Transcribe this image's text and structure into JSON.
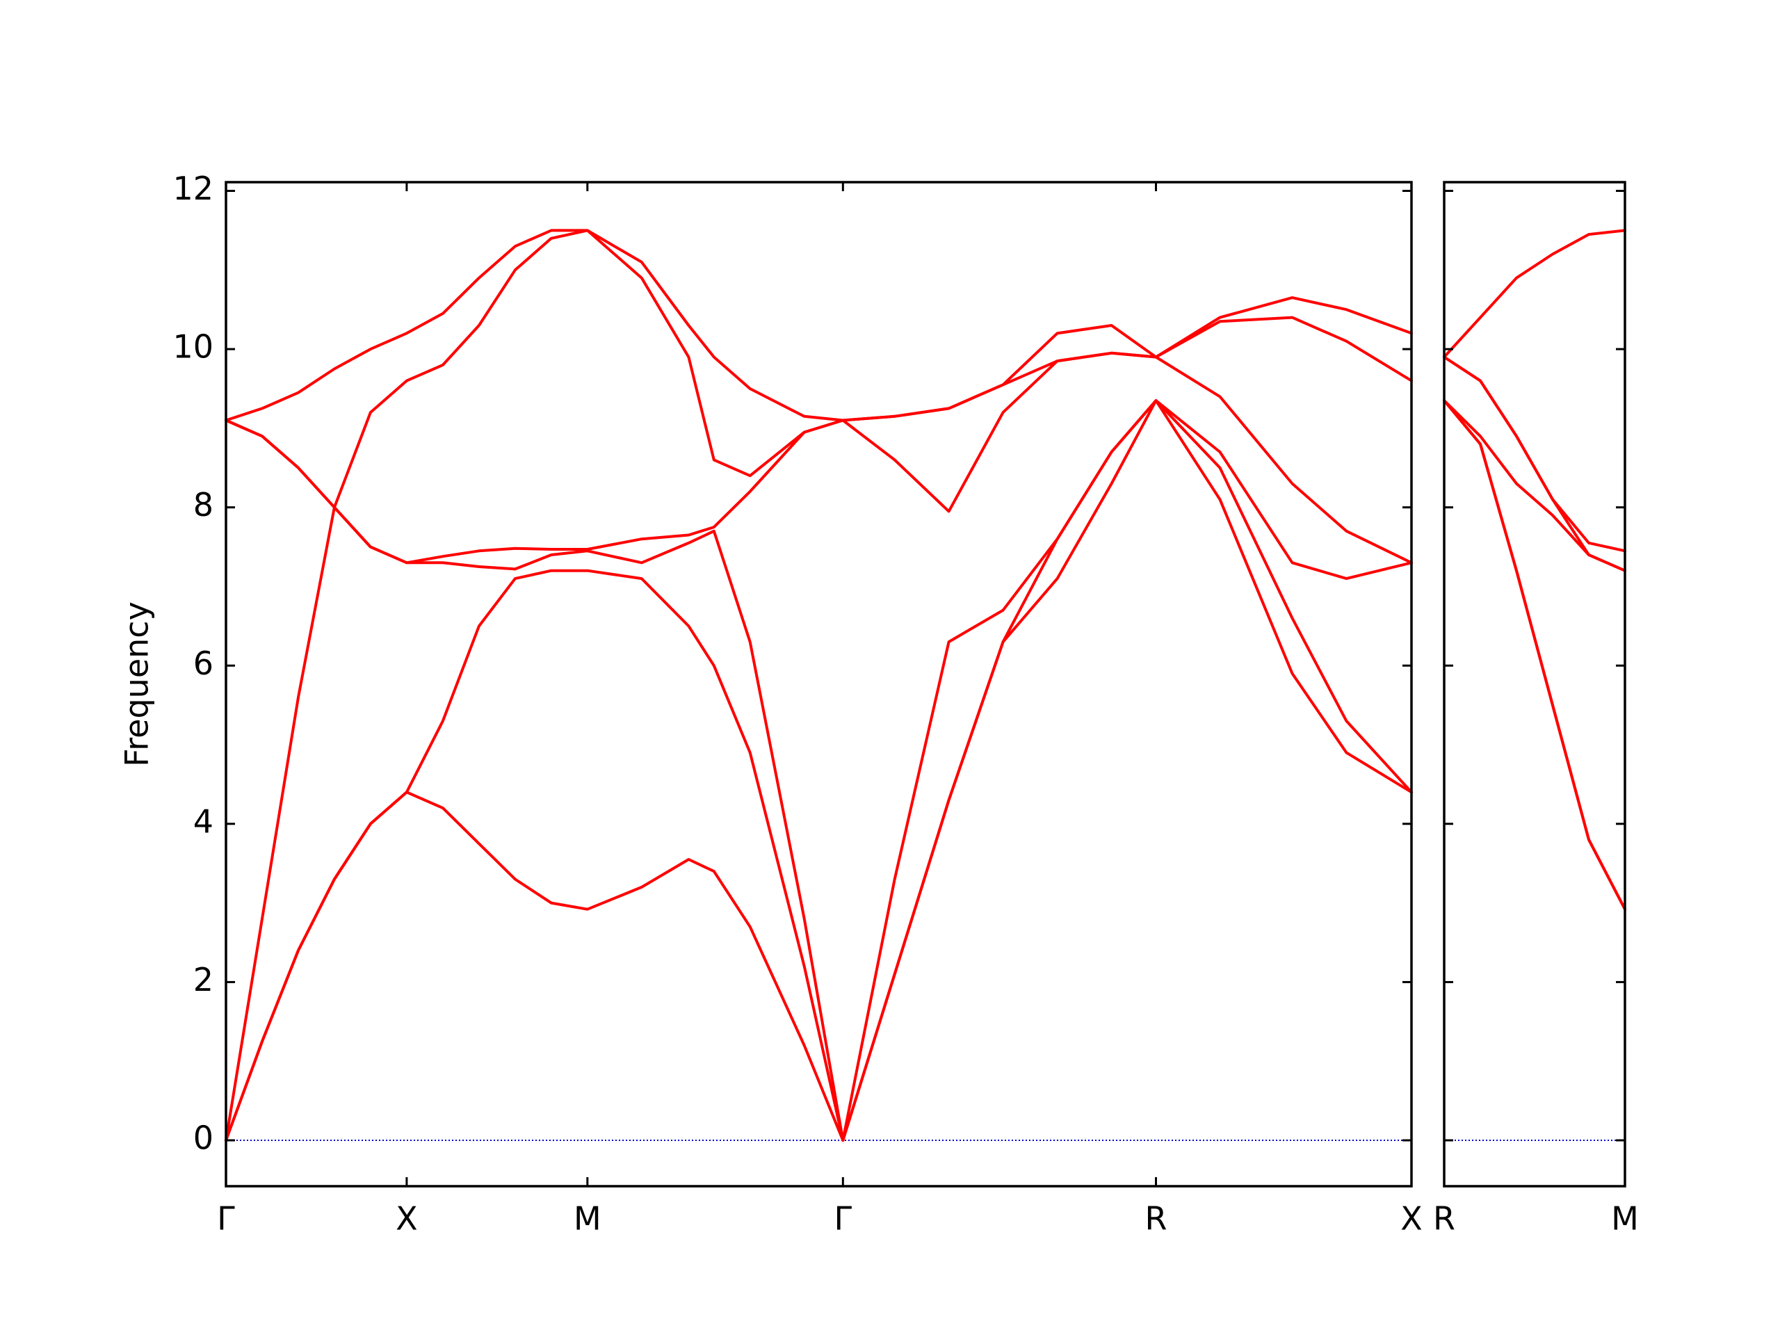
{
  "chart_data": [
    {
      "type": "line",
      "ylabel": "Frequency",
      "color": "#ff0000",
      "ylim": [
        -0.58,
        12.11
      ],
      "yticks": [
        0,
        2,
        4,
        6,
        8,
        10,
        12
      ],
      "xlim": [
        0,
        3.28
      ],
      "xticks": [
        {
          "value": 0,
          "label": "Γ"
        },
        {
          "value": 0.5,
          "label": "X"
        },
        {
          "value": 1.0,
          "label": "M"
        },
        {
          "value": 1.707,
          "label": "Γ"
        },
        {
          "value": 2.573,
          "label": "R"
        },
        {
          "value": 3.28,
          "label": "X"
        }
      ],
      "hline": 0,
      "hline_color": "#0000cd",
      "x": [
        0,
        0.1,
        0.2,
        0.3,
        0.4,
        0.5,
        0.6,
        0.7,
        0.8,
        0.9,
        1.0,
        1.15,
        1.28,
        1.35,
        1.45,
        1.6,
        1.707,
        1.85,
        2.0,
        2.15,
        2.3,
        2.45,
        2.573,
        2.75,
        2.95,
        3.1,
        3.28
      ],
      "series": [
        {
          "color": "#ff0000",
          "values": [
            0,
            1.25,
            2.4,
            3.3,
            4.0,
            4.4,
            4.2,
            3.75,
            3.3,
            3.0,
            2.92,
            3.2,
            3.55,
            3.4,
            2.7,
            1.2,
            0,
            2.1,
            4.3,
            6.3,
            7.1,
            8.3,
            9.35,
            8.1,
            5.9,
            4.9,
            4.4
          ]
        },
        {
          "color": "#ff0000",
          "values": [
            0,
            1.25,
            2.4,
            3.3,
            4.0,
            4.4,
            5.3,
            6.5,
            7.1,
            7.2,
            7.2,
            7.1,
            6.5,
            6.0,
            4.9,
            2.2,
            0,
            2.1,
            4.3,
            6.3,
            7.6,
            8.7,
            9.35,
            8.5,
            6.6,
            5.3,
            4.4
          ]
        },
        {
          "color": "#ff0000",
          "values": [
            0,
            2.8,
            5.6,
            8.0,
            7.5,
            7.3,
            7.3,
            7.25,
            7.22,
            7.4,
            7.45,
            7.3,
            7.55,
            7.7,
            6.3,
            2.8,
            0,
            3.3,
            6.3,
            6.7,
            7.6,
            8.7,
            9.35,
            8.7,
            7.3,
            7.1,
            7.3
          ]
        },
        {
          "color": "#ff0000",
          "values": [
            9.1,
            8.9,
            8.5,
            8.0,
            7.5,
            7.3,
            7.38,
            7.45,
            7.48,
            7.47,
            7.47,
            7.6,
            7.65,
            7.75,
            8.2,
            8.95,
            9.1,
            8.6,
            7.95,
            9.2,
            9.85,
            9.95,
            9.9,
            9.4,
            8.3,
            7.7,
            7.3
          ]
        },
        {
          "color": "#ff0000",
          "values": [
            9.1,
            8.9,
            8.5,
            8.0,
            9.2,
            9.6,
            9.8,
            10.3,
            11.0,
            11.4,
            11.5,
            10.9,
            9.9,
            8.6,
            8.4,
            8.95,
            9.1,
            9.15,
            9.25,
            9.55,
            9.85,
            9.95,
            9.9,
            10.35,
            10.4,
            10.1,
            9.6
          ]
        },
        {
          "color": "#ff0000",
          "values": [
            9.1,
            9.25,
            9.45,
            9.75,
            10.0,
            10.2,
            10.45,
            10.9,
            11.3,
            11.5,
            11.5,
            11.1,
            10.3,
            9.9,
            9.5,
            9.15,
            9.1,
            9.15,
            9.25,
            9.55,
            10.2,
            10.3,
            9.9,
            10.4,
            10.65,
            10.5,
            10.2
          ]
        }
      ]
    },
    {
      "type": "line",
      "color": "#ff0000",
      "ylim": [
        -0.58,
        12.11
      ],
      "yticks": [
        0,
        2,
        4,
        6,
        8,
        10,
        12
      ],
      "xlim": [
        0,
        0.5
      ],
      "xticks": [
        {
          "value": 0,
          "label": "R"
        },
        {
          "value": 0.5,
          "label": "M"
        }
      ],
      "hline": 0,
      "hline_color": "#0000cd",
      "x": [
        0,
        0.1,
        0.2,
        0.3,
        0.4,
        0.5
      ],
      "series": [
        {
          "color": "#ff0000",
          "values": [
            9.35,
            8.8,
            7.2,
            5.5,
            3.8,
            2.92
          ]
        },
        {
          "color": "#ff0000",
          "values": [
            9.35,
            8.8,
            7.2,
            5.5,
            3.8,
            2.92
          ]
        },
        {
          "color": "#ff0000",
          "values": [
            9.35,
            8.9,
            8.3,
            7.9,
            7.4,
            7.2
          ]
        },
        {
          "color": "#ff0000",
          "values": [
            9.9,
            9.6,
            8.9,
            8.1,
            7.4,
            7.2
          ]
        },
        {
          "color": "#ff0000",
          "values": [
            9.9,
            9.6,
            8.9,
            8.1,
            7.55,
            7.45
          ]
        },
        {
          "color": "#ff0000",
          "values": [
            9.9,
            10.4,
            10.9,
            11.2,
            11.45,
            11.5
          ]
        }
      ]
    }
  ]
}
